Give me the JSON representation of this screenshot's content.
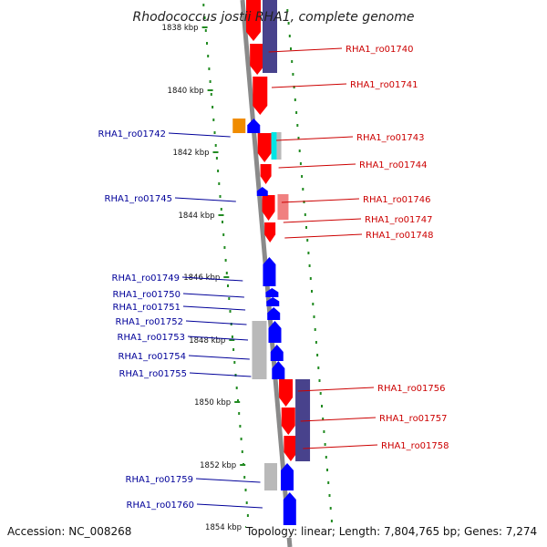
{
  "title": "Rhodococcus jostii RHA1, complete genome",
  "footer": {
    "accession": "Accession: NC_008268",
    "summary": "Topology: linear; Length: 7,804,765 bp; Genes: 7,274"
  },
  "colors": {
    "forward_gene": "#ff0000",
    "forward_label": "#cc0000",
    "reverse_gene": "#0000ff",
    "reverse_label": "#000099",
    "other_feature": "#48428c",
    "pseudo_feature": "#b9b9b9",
    "axis": "#888888",
    "scale_dots": "#228b22"
  },
  "scale": {
    "unit": "kbp",
    "ticks": [
      {
        "kbp": 1838,
        "label": "1838 kbp"
      },
      {
        "kbp": 1840,
        "label": "1840 kbp"
      },
      {
        "kbp": 1842,
        "label": "1842 kbp"
      },
      {
        "kbp": 1844,
        "label": "1844 kbp"
      },
      {
        "kbp": 1846,
        "label": "1846 kbp"
      },
      {
        "kbp": 1848,
        "label": "1848 kbp"
      },
      {
        "kbp": 1850,
        "label": "1850 kbp"
      },
      {
        "kbp": 1852,
        "label": "1852 kbp"
      },
      {
        "kbp": 1854,
        "label": "1854 kbp"
      }
    ]
  },
  "genes": [
    {
      "id": "RHA1_ro01740",
      "strand": "forward"
    },
    {
      "id": "RHA1_ro01741",
      "strand": "forward"
    },
    {
      "id": "RHA1_ro01742",
      "strand": "reverse"
    },
    {
      "id": "RHA1_ro01743",
      "strand": "forward"
    },
    {
      "id": "RHA1_ro01744",
      "strand": "forward"
    },
    {
      "id": "RHA1_ro01745",
      "strand": "reverse"
    },
    {
      "id": "RHA1_ro01746",
      "strand": "forward"
    },
    {
      "id": "RHA1_ro01747",
      "strand": "forward"
    },
    {
      "id": "RHA1_ro01748",
      "strand": "forward"
    },
    {
      "id": "RHA1_ro01749",
      "strand": "reverse"
    },
    {
      "id": "RHA1_ro01750",
      "strand": "reverse"
    },
    {
      "id": "RHA1_ro01751",
      "strand": "reverse"
    },
    {
      "id": "RHA1_ro01752",
      "strand": "reverse"
    },
    {
      "id": "RHA1_ro01753",
      "strand": "reverse"
    },
    {
      "id": "RHA1_ro01754",
      "strand": "reverse"
    },
    {
      "id": "RHA1_ro01755",
      "strand": "reverse"
    },
    {
      "id": "RHA1_ro01756",
      "strand": "forward"
    },
    {
      "id": "RHA1_ro01757",
      "strand": "forward"
    },
    {
      "id": "RHA1_ro01758",
      "strand": "forward"
    },
    {
      "id": "RHA1_ro01759",
      "strand": "reverse"
    },
    {
      "id": "RHA1_ro01760",
      "strand": "reverse"
    }
  ]
}
